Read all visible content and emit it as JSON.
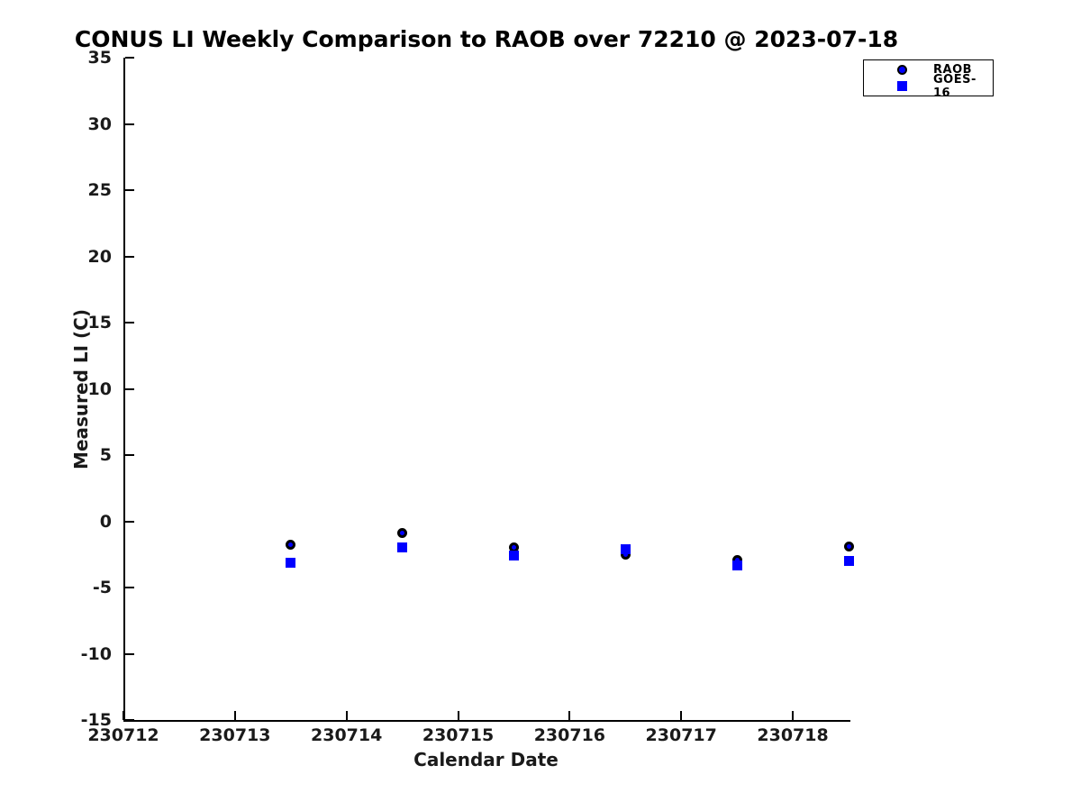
{
  "chart_data": {
    "type": "scatter",
    "title": "CONUS LI Weekly Comparison to RAOB over 72210 @ 2023-07-18",
    "xlabel": "Calendar Date",
    "ylabel": "Measured LI (C)",
    "xlim": [
      230712,
      230718.5
    ],
    "ylim": [
      -15,
      35
    ],
    "x_ticks": [
      230712,
      230713,
      230714,
      230715,
      230716,
      230717,
      230718
    ],
    "y_ticks": [
      35,
      30,
      25,
      20,
      15,
      10,
      5,
      0,
      -5,
      -10,
      -15
    ],
    "grid": false,
    "legend_position": "top-right-outside",
    "x": [
      230713.5,
      230714.5,
      230715.5,
      230716.5,
      230717.5,
      230718.5
    ],
    "series": [
      {
        "name": "RAOB",
        "marker": "circle",
        "fill_color": "#0000ff",
        "edge_color": "#000000",
        "values": [
          -1.8,
          -0.9,
          -2.0,
          -2.5,
          -2.9,
          -1.9
        ]
      },
      {
        "name": "GOES-16",
        "marker": "square",
        "fill_color": "#0000ff",
        "edge_color": "#0000ff",
        "values": [
          -3.1,
          -2.0,
          -2.6,
          -2.1,
          -3.3,
          -3.0
        ]
      }
    ],
    "colors": {
      "marker_blue": "#0000ff",
      "marker_edge": "#000000",
      "axis": "#000000",
      "background": "#ffffff"
    }
  }
}
